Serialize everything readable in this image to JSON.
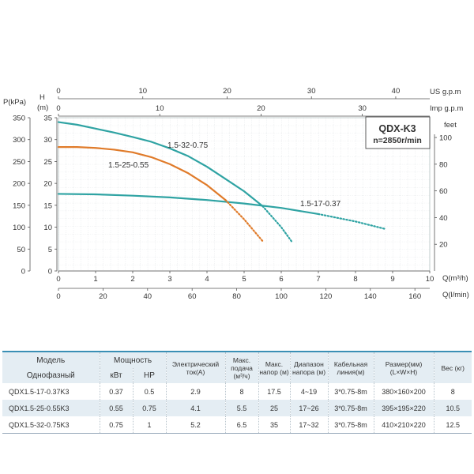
{
  "chart_data": {
    "type": "line",
    "badge": {
      "title": "QDX-K3",
      "subtitle": "n=2850r/min"
    },
    "axes": {
      "pressure": {
        "label": "P(kPa)",
        "ticks": [
          0,
          50,
          100,
          150,
          200,
          250,
          300,
          350
        ]
      },
      "head_m": {
        "label_top": "H",
        "label_bottom": "(m)",
        "ticks": [
          0,
          5,
          10,
          15,
          20,
          25,
          30,
          35
        ],
        "range": [
          0,
          35
        ]
      },
      "feet": {
        "label": "feet",
        "ticks": [
          20,
          40,
          60,
          80,
          100
        ]
      },
      "us_gpm": {
        "label": "US g.p.m",
        "ticks": [
          0,
          10,
          20,
          30,
          40
        ]
      },
      "imp_gpm": {
        "label": "Imp g.p.m",
        "ticks": [
          0,
          10,
          20,
          30
        ]
      },
      "flow_m3h": {
        "label": "Q(m³/h)",
        "ticks": [
          0,
          1,
          2,
          3,
          4,
          5,
          6,
          7,
          8,
          9,
          10
        ],
        "range": [
          0,
          10
        ]
      },
      "flow_lmin": {
        "label": "Q(l/min)",
        "ticks": [
          0,
          20,
          40,
          60,
          80,
          100,
          120,
          140,
          160
        ]
      }
    },
    "series": [
      {
        "name": "1.5-17-0.37",
        "color": "#2fa3a3",
        "x": [
          0,
          1,
          2,
          3,
          4,
          5,
          6,
          7,
          8,
          8.8
        ],
        "y": [
          17.6,
          17.5,
          17.2,
          16.8,
          16.2,
          15.4,
          14.4,
          13.0,
          11.3,
          9.6
        ]
      },
      {
        "name": "1.5-25-0.55",
        "color": "#e07b2a",
        "x": [
          0,
          0.5,
          1,
          1.5,
          2,
          2.5,
          3,
          3.5,
          4,
          4.5,
          5,
          5.5
        ],
        "y": [
          28.3,
          28.3,
          28.1,
          27.7,
          27.1,
          26.0,
          24.4,
          22.3,
          19.6,
          16.2,
          11.8,
          6.8
        ]
      },
      {
        "name": "1.5-32-0.75",
        "color": "#2fa3a3",
        "x": [
          0,
          0.5,
          1,
          1.5,
          2,
          2.5,
          3,
          3.5,
          4,
          4.5,
          5,
          5.5,
          6,
          6.3
        ],
        "y": [
          34.0,
          33.4,
          32.5,
          31.6,
          30.6,
          29.5,
          28.0,
          26.2,
          23.8,
          21.0,
          18.2,
          14.8,
          10.0,
          6.5
        ]
      }
    ]
  },
  "table": {
    "headers": {
      "model": "Модель",
      "phase": "Однофазный",
      "power": "Мощность",
      "kw": "кВт",
      "hp": "HP",
      "current": "Электрический ток(A)",
      "max_flow": "Макс. подача (м³/ч)",
      "max_head": "Макс. напор (м)",
      "head_range": "Диапазон напора (м)",
      "cable": "Кабельная линия(м)",
      "size": "Размер(мм) (L×W×H)",
      "weight": "Вес (кг)"
    },
    "rows": [
      {
        "model": "QDX1.5-17-0.37K3",
        "kw": "0.37",
        "hp": "0.5",
        "current": "2.9",
        "max_flow": "8",
        "max_head": "17.5",
        "head_range": "4~19",
        "cable": "3*0.75-8m",
        "size": "380×160×200",
        "weight": "8"
      },
      {
        "model": "QDX1.5-25-0.55K3",
        "kw": "0.55",
        "hp": "0.75",
        "current": "4.1",
        "max_flow": "5.5",
        "max_head": "25",
        "head_range": "17~26",
        "cable": "3*0.75-8m",
        "size": "395×195×220",
        "weight": "10.5"
      },
      {
        "model": "QDX1.5-32-0.75K3",
        "kw": "0.75",
        "hp": "1",
        "current": "5.2",
        "max_flow": "6.5",
        "max_head": "35",
        "head_range": "17~32",
        "cable": "3*0.75-8m",
        "size": "410×210×220",
        "weight": "12.5"
      }
    ]
  }
}
